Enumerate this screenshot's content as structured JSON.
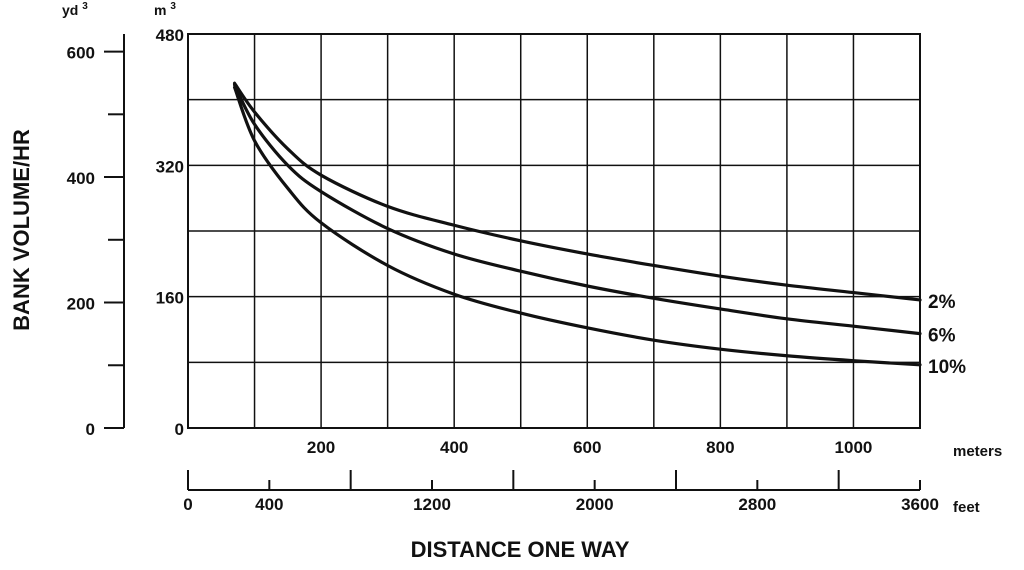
{
  "chart_data": {
    "type": "line",
    "title": "",
    "ylabel": "BANK VOLUME/HR",
    "xlabel": "DISTANCE ONE WAY",
    "colors": {
      "line": "#111111",
      "grid": "#111111",
      "background": "#ffffff"
    },
    "grid": true,
    "x_axis_meters": {
      "unit": "meters",
      "range": [
        0,
        1100
      ],
      "ticks": [
        200,
        400,
        600,
        800,
        1000
      ],
      "tick_labels": [
        "200",
        "400",
        "600",
        "800",
        "1000"
      ]
    },
    "x_axis_feet": {
      "unit": "feet",
      "range": [
        0,
        3600
      ],
      "ticks": [
        0,
        400,
        1200,
        2000,
        2800,
        3600
      ],
      "tick_labels": [
        "0",
        "400",
        "1200",
        "2000",
        "2800",
        "3600"
      ],
      "minor_ticks": [
        800,
        1600,
        2400,
        3200
      ]
    },
    "y_axis_m3": {
      "unit_label": "m",
      "unit_sup": "3",
      "range": [
        0,
        480
      ],
      "ticks": [
        0,
        160,
        320,
        480
      ],
      "tick_labels": [
        "0",
        "160",
        "320",
        "480"
      ]
    },
    "y_axis_yd3": {
      "unit_label": "yd",
      "unit_sup": "3",
      "range": [
        0,
        628
      ],
      "ticks": [
        0,
        200,
        400,
        600
      ],
      "tick_labels": [
        "0",
        "200",
        "400",
        "600"
      ]
    },
    "series": [
      {
        "name": "2%",
        "x": [
          70,
          100,
          150,
          200,
          300,
          400,
          500,
          600,
          700,
          800,
          900,
          1000,
          1100
        ],
        "values": [
          420,
          385,
          340,
          308,
          270,
          247,
          228,
          212,
          198,
          185,
          174,
          165,
          156
        ]
      },
      {
        "name": "6%",
        "x": [
          70,
          100,
          150,
          200,
          300,
          400,
          500,
          600,
          700,
          800,
          900,
          1000,
          1100
        ],
        "values": [
          418,
          370,
          320,
          288,
          243,
          212,
          191,
          173,
          158,
          145,
          133,
          124,
          115
        ]
      },
      {
        "name": "10%",
        "x": [
          70,
          100,
          150,
          200,
          300,
          400,
          500,
          600,
          700,
          800,
          900,
          1000,
          1100
        ],
        "values": [
          415,
          350,
          292,
          250,
          198,
          163,
          140,
          122,
          107,
          96,
          88,
          82,
          77
        ]
      }
    ]
  }
}
